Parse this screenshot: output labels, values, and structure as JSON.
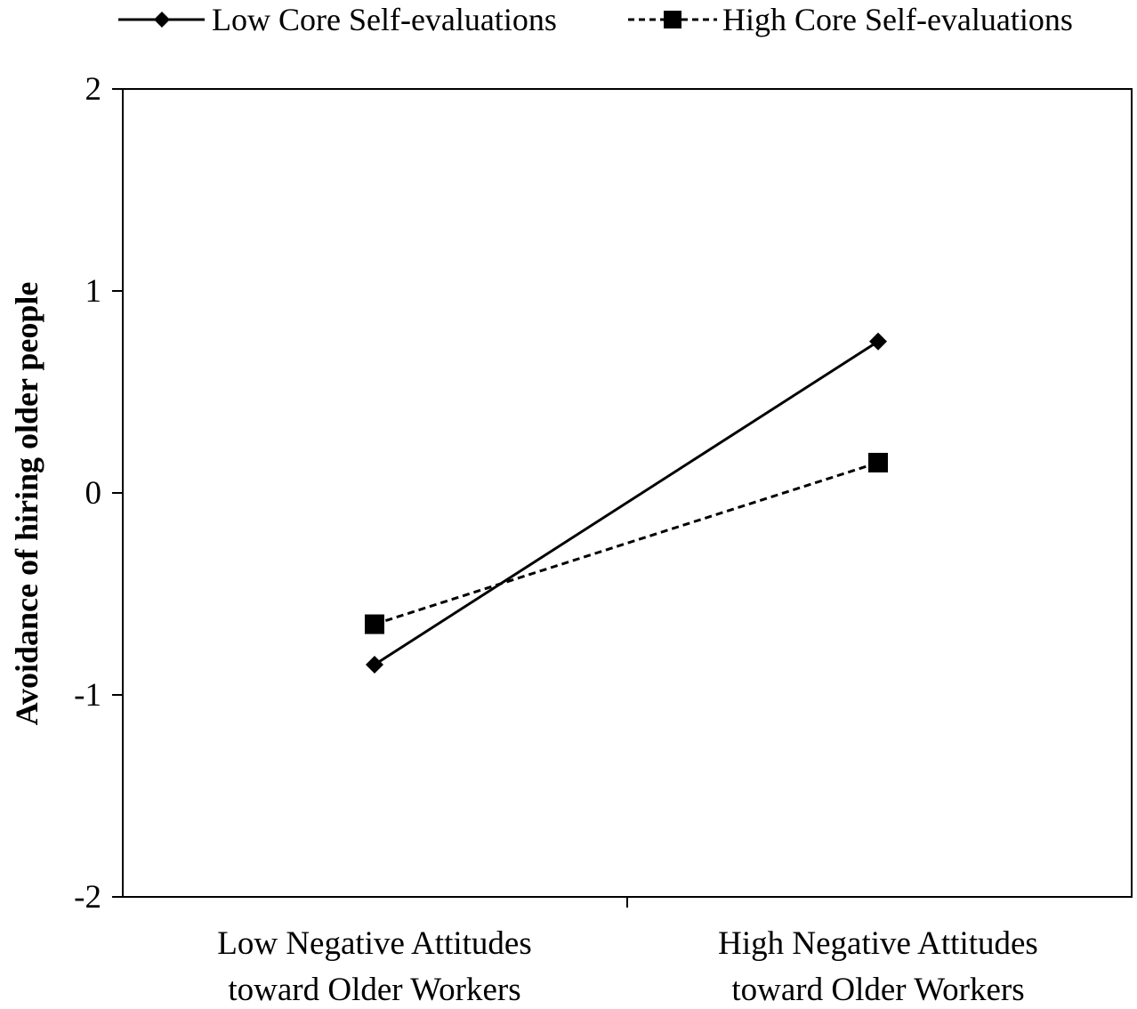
{
  "chart_data": {
    "type": "line",
    "title": "",
    "xlabel": "",
    "ylabel": "Avoidance of hiring older people",
    "categories": [
      [
        "Low Negative Attitudes",
        "toward Older Workers"
      ],
      [
        "High Negative Attitudes",
        "toward Older Workers"
      ]
    ],
    "ylim": [
      -2,
      2
    ],
    "yticks": [
      2,
      1,
      0,
      -1,
      -2
    ],
    "ytick_labels": [
      "2",
      "1",
      "0",
      "-1",
      "-2"
    ],
    "grid": false,
    "legend_position": "top",
    "series": [
      {
        "name": "Low Core Self-evaluations",
        "marker": "diamond",
        "line": "solid",
        "color": "#000000",
        "values": [
          -0.85,
          0.75
        ]
      },
      {
        "name": "High Core Self-evaluations",
        "marker": "square",
        "line": "dashed",
        "color": "#000000",
        "values": [
          -0.65,
          0.15
        ]
      }
    ]
  }
}
